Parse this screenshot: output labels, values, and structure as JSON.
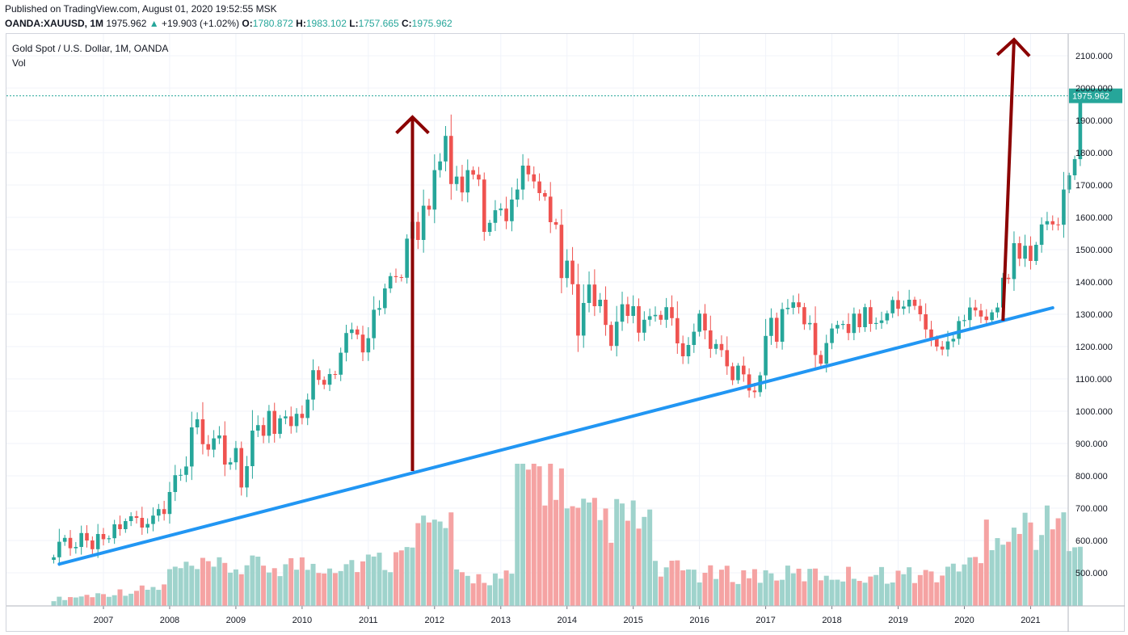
{
  "header": {
    "published": "Published on TradingView.com, August 01, 2020 19:52:55 MSK",
    "symbol": "OANDA:XAUUSD, 1M",
    "price": "1975.962",
    "change": "+19.903 (+1.02%)",
    "o_label": "O:",
    "o_value": "1780.872",
    "h_label": "H:",
    "h_value": "1983.102",
    "l_label": "L:",
    "l_value": "1757.665",
    "c_label": "C:",
    "c_value": "1975.962"
  },
  "series_title": "Gold Spot / U.S. Dollar, 1M, OANDA",
  "volume_label": "Vol",
  "colors": {
    "up": "#26a69a",
    "down": "#ef5350",
    "vol_up": "#9fd3cc",
    "vol_down": "#f5a3a3",
    "trendline": "#2196f3",
    "arrow": "#8b0000",
    "grid": "#f0f3fa",
    "price_line": "#26a69a"
  },
  "chart_data": {
    "type": "candlestick",
    "symbol": "XAUUSD",
    "interval": "1M",
    "ylim": [
      400,
      2200
    ],
    "y_ticks": [
      "2100.000",
      "2000.000",
      "1900.000",
      "1800.000",
      "1700.000",
      "1600.000",
      "1500.000",
      "1400.000",
      "1300.000",
      "1200.000",
      "1100.000",
      "1000.000",
      "900.000",
      "800.000",
      "700.000",
      "600.000",
      "500.000"
    ],
    "x_ticks": [
      "2007",
      "2008",
      "2009",
      "2010",
      "2011",
      "2012",
      "2013",
      "2014",
      "2015",
      "2016",
      "2017",
      "2018",
      "2019",
      "2020",
      "2021"
    ],
    "last_price_label": "1975.962",
    "start": "2006-04",
    "closes": [
      548,
      596,
      608,
      576,
      580,
      623,
      600,
      573,
      620,
      604,
      607,
      650,
      635,
      660,
      675,
      670,
      640,
      651,
      677,
      697,
      682,
      750,
      802,
      803,
      829,
      950,
      975,
      898,
      881,
      916,
      925,
      835,
      842,
      886,
      764,
      830,
      940,
      957,
      924,
      1001,
      930,
      978,
      984,
      954,
      992,
      979,
      1036,
      1127,
      1097,
      1082,
      1115,
      1113,
      1181,
      1242,
      1253,
      1237,
      1182,
      1226,
      1314,
      1319,
      1380,
      1418,
      1415,
      1413,
      1534,
      1586,
      1530,
      1636,
      1624,
      1746,
      1773,
      1852,
      1703,
      1726,
      1677,
      1746,
      1732,
      1717,
      1555,
      1583,
      1622,
      1627,
      1588,
      1655,
      1686,
      1760,
      1733,
      1711,
      1675,
      1664,
      1585,
      1577,
      1412,
      1466,
      1393,
      1234,
      1335,
      1392,
      1325,
      1345,
      1267,
      1202,
      1277,
      1331,
      1295,
      1325,
      1243,
      1283,
      1294,
      1298,
      1283,
      1322,
      1288,
      1210,
      1170,
      1205,
      1246,
      1302,
      1250,
      1193,
      1208,
      1189,
      1139,
      1096,
      1141,
      1114,
      1064,
      1059,
      1111,
      1233,
      1289,
      1215,
      1316,
      1320,
      1337,
      1322,
      1269,
      1273,
      1174,
      1147,
      1211,
      1256,
      1267,
      1270,
      1242,
      1302,
      1260,
      1322,
      1270,
      1273,
      1281,
      1303,
      1344,
      1317,
      1324,
      1345,
      1326,
      1300,
      1253,
      1224,
      1200,
      1191,
      1216,
      1224,
      1279,
      1282,
      1321,
      1312,
      1293,
      1282,
      1306,
      1321,
      1413,
      1409,
      1520,
      1472,
      1512,
      1465,
      1515,
      1578,
      1588,
      1578,
      1577,
      1686,
      1730,
      1780,
      1976
    ],
    "volume_y_max": 840,
    "trendline": {
      "start": [
        "2006-05",
        527
      ],
      "end": [
        "2021-05",
        1320
      ]
    },
    "arrows": [
      {
        "from": [
          "2011-09",
          815
        ],
        "to": [
          "2011-09",
          1910
        ]
      },
      {
        "from": [
          "2020-08",
          1280
        ],
        "to": [
          "2020-10",
          2150
        ]
      }
    ]
  }
}
